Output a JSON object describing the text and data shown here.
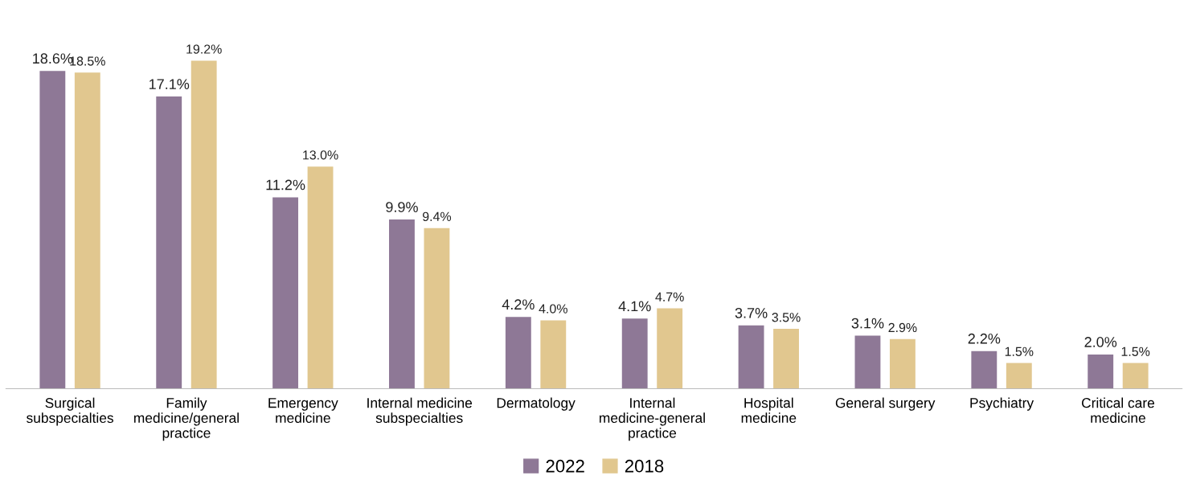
{
  "chart_data": {
    "type": "bar",
    "categories": [
      "Surgical\nsubspecialties",
      "Family\nmedicine/general\npractice",
      "Emergency\nmedicine",
      "Internal medicine\nsubspecialties",
      "Dermatology",
      "Internal\nmedicine-general\npractice",
      "Hospital\nmedicine",
      "General surgery",
      "Psychiatry",
      "Critical care\nmedicine"
    ],
    "series": [
      {
        "name": "2022",
        "color": "#8e7896",
        "values": [
          18.6,
          17.1,
          11.2,
          9.9,
          4.2,
          4.1,
          3.7,
          3.1,
          2.2,
          2.0
        ],
        "value_labels": [
          "18.6%",
          "17.1%",
          "11.2%",
          "9.9%",
          "4.2%",
          "4.1%",
          "3.7%",
          "3.1%",
          "2.2%",
          "2.0%"
        ]
      },
      {
        "name": "2018",
        "color": "#e1c78f",
        "values": [
          18.5,
          19.2,
          13.0,
          9.4,
          4.0,
          4.7,
          3.5,
          2.9,
          1.5,
          1.5
        ],
        "value_labels": [
          "18.5%",
          "19.2%",
          "13.0%",
          "9.4%",
          "4.0%",
          "4.7%",
          "3.5%",
          "2.9%",
          "1.5%",
          "1.5%"
        ]
      }
    ],
    "legend": "bottom",
    "grid": false,
    "tick_labels": "x"
  }
}
